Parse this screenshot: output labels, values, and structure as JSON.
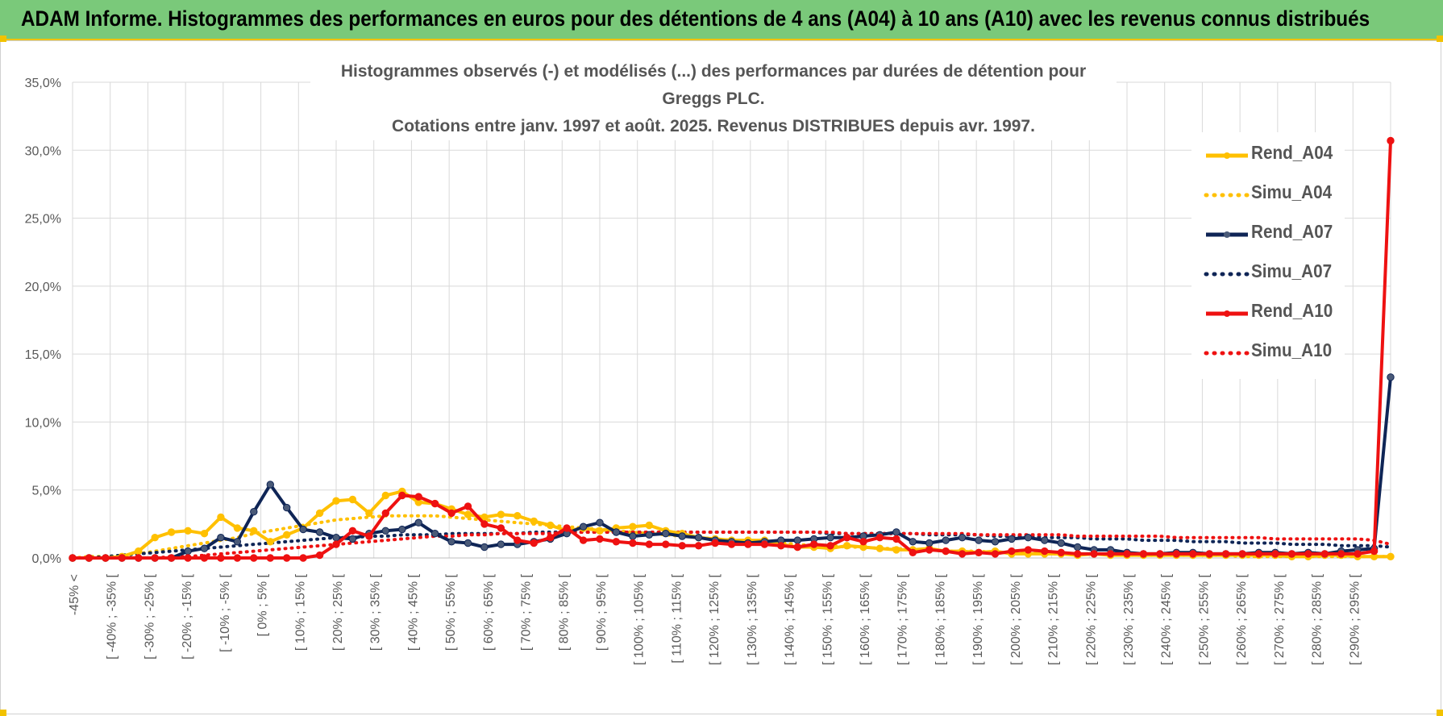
{
  "header": {
    "title": "ADAM Informe. Histogrammes des performances en euros pour des détentions de 4 ans (A04) à 10 ans (A10) avec les revenus connus distribués"
  },
  "colors": {
    "header_bg": "#7ac97a",
    "accent": "#f2c200",
    "A04": "#ffc000",
    "A07": "#0f2556",
    "A10": "#ee1111",
    "grid": "#d9d9d9",
    "axis_text": "#595959"
  },
  "chart_data": {
    "type": "line",
    "title_lines": [
      "Histogrammes observés (-) et modélisés (...) des performances par durées de détention pour Greggs PLC.",
      "Cotations entre janv. 1997 et août. 2025. Revenus DISTRIBUES depuis avr. 1997."
    ],
    "y_ticks": [
      "0,0%",
      "5,0%",
      "10,0%",
      "15,0%",
      "20,0%",
      "25,0%",
      "30,0%",
      "35,0%"
    ],
    "ylim": [
      0,
      35
    ],
    "grid": true,
    "legend_position": "right",
    "x_labels": [
      "-45% <",
      "[ -40% ; -35% [",
      "[ -30% ; -25% [",
      "[ -20% ; -15% [",
      "[ -10% ; -5% [",
      "[ 0% ; 5% [",
      "[ 10% ; 15% [",
      "[ 20% ; 25% [",
      "[ 30% ; 35% [",
      "[ 40% ; 45% [",
      "[ 50% ; 55% [",
      "[ 60% ; 65% [",
      "[ 70% ; 75% [",
      "[ 80% ; 85% [",
      "[ 90% ; 95% [",
      "[ 100% ; 105% [",
      "[ 110% ; 115% [",
      "[ 120% ; 125% [",
      "[ 130% ; 135% [",
      "[ 140% ; 145% [",
      "[ 150% ; 155% [",
      "[ 160% ; 165% [",
      "[ 170% ; 175% [",
      "[ 180% ; 185% [",
      "[ 190% ; 195% [",
      "[ 200% ; 205% [",
      "[ 210% ; 215% [",
      "[ 220% ; 225% [",
      "[ 230% ; 235% [",
      "[ 240% ; 245% [",
      "[ 250% ; 255% [",
      "[ 260% ; 265% [",
      "[ 270% ; 275% [",
      "[ 280% ; 285% [",
      "[ 290% ; 295% ["
    ],
    "series": [
      {
        "name": "Rend_A04",
        "style": "solid",
        "values": [
          0,
          0,
          0,
          0.1,
          0.5,
          1.5,
          1.9,
          2.0,
          1.8,
          3.0,
          2.2,
          2.0,
          1.2,
          1.7,
          2.2,
          3.3,
          4.2,
          4.3,
          3.3,
          4.6,
          4.9,
          4.1,
          4.0,
          3.6,
          3.2,
          3.0,
          3.2,
          3.1,
          2.7,
          2.4,
          2.0,
          2.2,
          2.0,
          2.2,
          2.3,
          2.4,
          2.0,
          1.8,
          1.5,
          1.4,
          1.3,
          1.3,
          1.3,
          1.0,
          0.8,
          0.8,
          0.7,
          0.9,
          0.8,
          0.7,
          0.6,
          0.6,
          0.7,
          0.5,
          0.5,
          0.4,
          0.5,
          0.3,
          0.3,
          0.3,
          0.3,
          0.2,
          0.3,
          0.2,
          0.2,
          0.2,
          0.2,
          0.2,
          0.2,
          0.2,
          0.2,
          0.2,
          0.2,
          0.2,
          0.1,
          0.1,
          0.2,
          0.2,
          0.1,
          0.1,
          0.1
        ]
      },
      {
        "name": "Simu_A04",
        "style": "dotted",
        "values": [
          0,
          0.1,
          0.1,
          0.2,
          0.3,
          0.5,
          0.7,
          0.9,
          1.1,
          1.3,
          1.5,
          1.8,
          2.0,
          2.2,
          2.4,
          2.6,
          2.8,
          2.9,
          3.0,
          3.1,
          3.1,
          3.1,
          3.1,
          3.0,
          2.9,
          2.8,
          2.7,
          2.6,
          2.5,
          2.4,
          2.3,
          2.2,
          2.1,
          2.0,
          1.9,
          1.8,
          1.7,
          1.6,
          1.5,
          1.4,
          1.3,
          1.2,
          1.2,
          1.1,
          1.0,
          0.9,
          0.9,
          0.8,
          0.8,
          0.7,
          0.7,
          0.6,
          0.6,
          0.5,
          0.5,
          0.5,
          0.4,
          0.4,
          0.4,
          0.3,
          0.3,
          0.3,
          0.3,
          0.3,
          0.2,
          0.2,
          0.2,
          0.2,
          0.2,
          0.2,
          0.2,
          0.1,
          0.1,
          0.1,
          0.1,
          0.1,
          0.1,
          0.1,
          0.1,
          0.1,
          0.1
        ]
      },
      {
        "name": "Rend_A07",
        "style": "solid",
        "values": [
          0,
          0,
          0,
          0,
          0,
          0,
          0,
          0.5,
          0.7,
          1.5,
          1.2,
          3.4,
          5.4,
          3.7,
          2.1,
          1.9,
          1.5,
          1.4,
          1.8,
          2.0,
          2.1,
          2.6,
          1.8,
          1.2,
          1.1,
          0.8,
          1.0,
          1.0,
          1.2,
          1.4,
          1.8,
          2.3,
          2.6,
          1.9,
          1.6,
          1.7,
          1.8,
          1.6,
          1.5,
          1.3,
          1.2,
          1.1,
          1.2,
          1.3,
          1.3,
          1.4,
          1.5,
          1.5,
          1.6,
          1.7,
          1.9,
          1.2,
          1.1,
          1.3,
          1.5,
          1.3,
          1.2,
          1.4,
          1.5,
          1.3,
          1.1,
          0.8,
          0.6,
          0.6,
          0.4,
          0.3,
          0.3,
          0.4,
          0.4,
          0.3,
          0.3,
          0.3,
          0.4,
          0.4,
          0.3,
          0.4,
          0.3,
          0.5,
          0.6,
          0.7,
          13.3
        ]
      },
      {
        "name": "Simu_A07",
        "style": "dotted",
        "values": [
          0,
          0,
          0.1,
          0.2,
          0.3,
          0.4,
          0.5,
          0.6,
          0.7,
          0.8,
          0.9,
          1.0,
          1.1,
          1.2,
          1.3,
          1.4,
          1.5,
          1.5,
          1.6,
          1.6,
          1.7,
          1.7,
          1.7,
          1.8,
          1.8,
          1.8,
          1.8,
          1.8,
          1.9,
          1.9,
          1.9,
          1.9,
          1.9,
          1.9,
          1.9,
          1.9,
          1.9,
          1.9,
          1.9,
          1.9,
          1.9,
          1.9,
          1.9,
          1.9,
          1.9,
          1.9,
          1.8,
          1.8,
          1.8,
          1.8,
          1.8,
          1.8,
          1.7,
          1.7,
          1.7,
          1.7,
          1.6,
          1.6,
          1.6,
          1.5,
          1.5,
          1.5,
          1.4,
          1.4,
          1.4,
          1.3,
          1.3,
          1.3,
          1.2,
          1.2,
          1.2,
          1.1,
          1.1,
          1.1,
          1.0,
          1.0,
          1.0,
          0.9,
          0.9,
          0.9,
          0.8
        ]
      },
      {
        "name": "Rend_A10",
        "style": "solid",
        "values": [
          0,
          0,
          0,
          0,
          0,
          0,
          0,
          0,
          0,
          0,
          0,
          0,
          0,
          0,
          0,
          0.2,
          1.0,
          2.0,
          1.6,
          3.3,
          4.6,
          4.5,
          4.0,
          3.3,
          3.8,
          2.5,
          2.2,
          1.3,
          1.1,
          1.5,
          2.2,
          1.3,
          1.4,
          1.2,
          1.1,
          1.0,
          1.0,
          0.9,
          0.9,
          1.1,
          1.0,
          1.0,
          1.0,
          0.9,
          0.8,
          1.0,
          0.9,
          1.5,
          1.2,
          1.5,
          1.4,
          0.4,
          0.6,
          0.5,
          0.3,
          0.4,
          0.3,
          0.5,
          0.6,
          0.5,
          0.4,
          0.3,
          0.3,
          0.3,
          0.3,
          0.3,
          0.3,
          0.3,
          0.3,
          0.3,
          0.3,
          0.3,
          0.3,
          0.3,
          0.3,
          0.3,
          0.3,
          0.3,
          0.3,
          0.5,
          30.7
        ]
      },
      {
        "name": "Simu_A10",
        "style": "dotted",
        "values": [
          0,
          0,
          0,
          0,
          0,
          0,
          0.1,
          0.1,
          0.2,
          0.3,
          0.4,
          0.5,
          0.6,
          0.7,
          0.8,
          0.9,
          1.0,
          1.1,
          1.2,
          1.3,
          1.4,
          1.5,
          1.6,
          1.6,
          1.7,
          1.7,
          1.8,
          1.8,
          1.8,
          1.8,
          1.9,
          1.9,
          1.9,
          1.9,
          1.9,
          1.9,
          1.9,
          1.9,
          1.9,
          1.9,
          1.9,
          1.9,
          1.9,
          1.9,
          1.9,
          1.9,
          1.9,
          1.8,
          1.8,
          1.8,
          1.8,
          1.8,
          1.8,
          1.8,
          1.8,
          1.7,
          1.7,
          1.7,
          1.7,
          1.7,
          1.7,
          1.6,
          1.6,
          1.6,
          1.6,
          1.6,
          1.6,
          1.5,
          1.5,
          1.5,
          1.5,
          1.5,
          1.5,
          1.4,
          1.4,
          1.4,
          1.4,
          1.4,
          1.4,
          1.3,
          1.0
        ]
      }
    ]
  }
}
